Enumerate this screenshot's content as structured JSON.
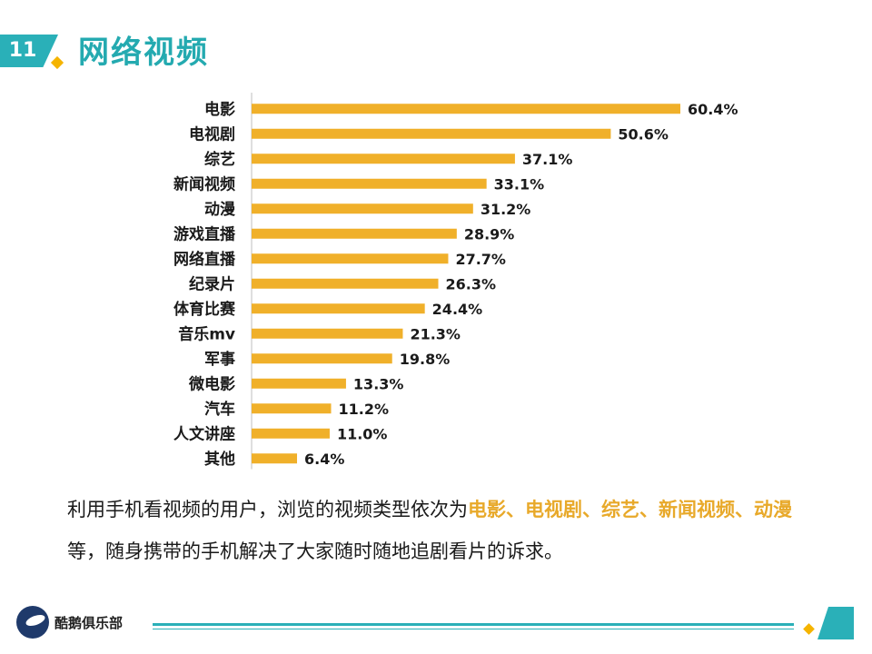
{
  "header": {
    "number": "11",
    "title": "网络视频"
  },
  "chart_data": {
    "type": "bar",
    "orientation": "horizontal",
    "categories": [
      "电影",
      "电视剧",
      "综艺",
      "新闻视频",
      "动漫",
      "游戏直播",
      "网络直播",
      "纪录片",
      "体育比赛",
      "音乐mv",
      "军事",
      "微电影",
      "汽车",
      "人文讲座",
      "其他"
    ],
    "values": [
      60.4,
      50.6,
      37.1,
      33.1,
      31.2,
      28.9,
      27.7,
      26.3,
      24.4,
      21.3,
      19.8,
      13.3,
      11.2,
      11.0,
      6.4
    ],
    "value_labels": [
      "60.4%",
      "50.6%",
      "37.1%",
      "33.1%",
      "31.2%",
      "28.9%",
      "27.7%",
      "26.3%",
      "24.4%",
      "21.3%",
      "19.8%",
      "13.3%",
      "11.2%",
      "11.0%",
      "6.4%"
    ],
    "unit": "%",
    "xlim": [
      0,
      60.4
    ],
    "title": "",
    "xlabel": "",
    "ylabel": "",
    "bar_color": "#f0b02a"
  },
  "summary": {
    "part1": "利用手机看视频的用户，浏览的视频类型依次为",
    "highlight": "电影、电视剧、综艺、新闻视频、动漫",
    "part2": "等，随身携带的手机解决了大家随时随地追剧看片的诉求。"
  },
  "footer": {
    "brand": "酷鹅俱乐部"
  },
  "colors": {
    "accent": "#2ab0b8",
    "highlight": "#e8a92a",
    "bar": "#f0b02a"
  }
}
